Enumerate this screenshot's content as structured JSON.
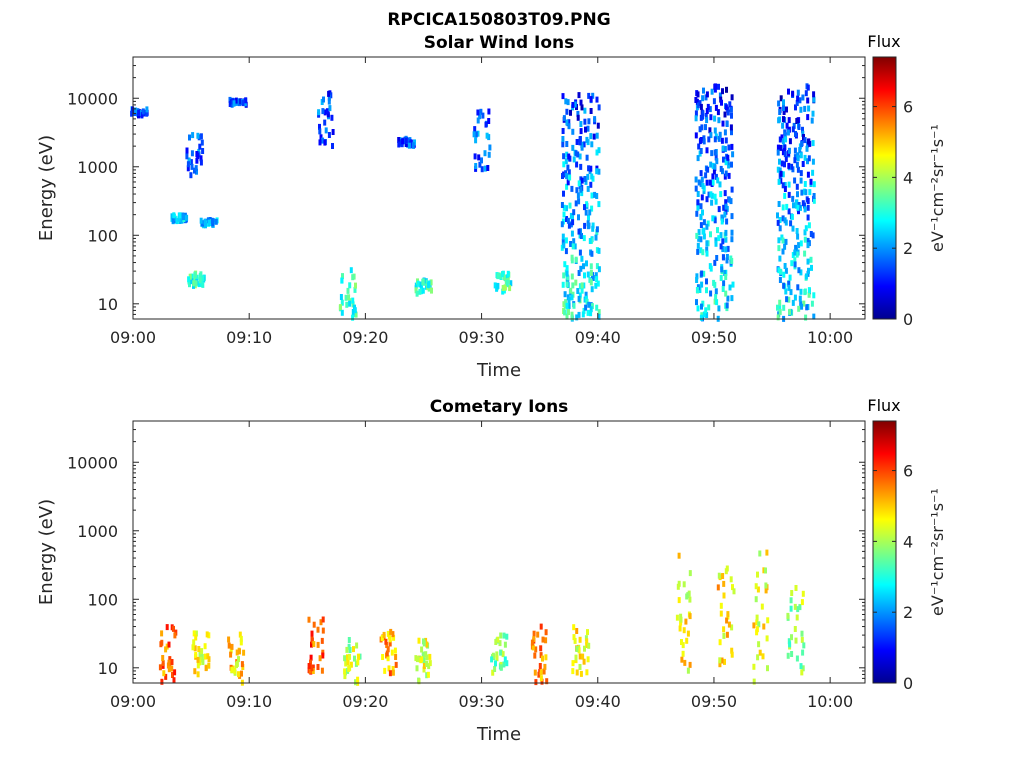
{
  "figure": {
    "title": "RPCICA150803T09.PNG"
  },
  "chart_data": [
    {
      "type": "heatmap",
      "title": "Solar Wind Ions",
      "xlabel": "Time",
      "ylabel": "Energy (eV)",
      "x_ticks": [
        "09:00",
        "09:10",
        "09:20",
        "09:30",
        "09:40",
        "09:50",
        "10:00"
      ],
      "xlim": [
        "09:00",
        "10:03"
      ],
      "y_scale": "log",
      "y_ticks": [
        "10",
        "100",
        "1000",
        "10000"
      ],
      "ylim": [
        6,
        40000
      ],
      "colorbar": {
        "label": "Flux",
        "unit": "eV⁻¹cm⁻²sr⁻¹s⁻¹",
        "range": [
          0,
          7.4
        ],
        "ticks": [
          "0",
          "2",
          "4",
          "6"
        ],
        "colormap": "jet"
      },
      "clusters": [
        {
          "t": "09:00.5",
          "e_lo": 5500,
          "e_hi": 7000,
          "flux": 1.5
        },
        {
          "t": "09:04",
          "e_lo": 160,
          "e_hi": 200,
          "flux": 2.4
        },
        {
          "t": "09:05.4",
          "e_lo": 18,
          "e_hi": 28,
          "flux": 3.2
        },
        {
          "t": "09:05.3",
          "e_lo": 700,
          "e_hi": 3000,
          "flux": 1.6
        },
        {
          "t": "09:06.5",
          "e_lo": 140,
          "e_hi": 170,
          "flux": 2.4
        },
        {
          "t": "09:09",
          "e_lo": 8000,
          "e_hi": 9500,
          "flux": 1.5
        },
        {
          "t": "09:16.5",
          "e_lo": 2000,
          "e_hi": 12000,
          "flux": 1.5
        },
        {
          "t": "09:18.5",
          "e_lo": 6,
          "e_hi": 35,
          "flux": 3.1
        },
        {
          "t": "09:23.5",
          "e_lo": 2000,
          "e_hi": 2600,
          "flux": 1.5
        },
        {
          "t": "09:25",
          "e_lo": 14,
          "e_hi": 22,
          "flux": 3.1
        },
        {
          "t": "09:30",
          "e_lo": 900,
          "e_hi": 7000,
          "flux": 1.6
        },
        {
          "t": "09:31.8",
          "e_lo": 15,
          "e_hi": 28,
          "flux": 3.2
        },
        {
          "t": "09:38.5",
          "e_lo": 6,
          "e_hi": 12000,
          "flux": 2.3
        },
        {
          "t": "09:50",
          "e_lo": 6,
          "e_hi": 15000,
          "flux": 2.2
        },
        {
          "t": "09:57",
          "e_lo": 6,
          "e_hi": 15000,
          "flux": 2.2
        }
      ]
    },
    {
      "type": "heatmap",
      "title": "Cometary Ions",
      "xlabel": "Time",
      "ylabel": "Energy (eV)",
      "x_ticks": [
        "09:00",
        "09:10",
        "09:20",
        "09:30",
        "09:40",
        "09:50",
        "10:00"
      ],
      "xlim": [
        "09:00",
        "10:03"
      ],
      "y_scale": "log",
      "y_ticks": [
        "10",
        "100",
        "1000",
        "10000"
      ],
      "ylim": [
        6,
        40000
      ],
      "colorbar": {
        "label": "Flux",
        "unit": "eV⁻¹cm⁻²sr⁻¹s⁻¹",
        "range": [
          0,
          7.4
        ],
        "ticks": [
          "0",
          "2",
          "4",
          "6"
        ],
        "colormap": "jet"
      },
      "clusters": [
        {
          "t": "09:03",
          "e_lo": 6,
          "e_hi": 45,
          "flux": 5.6
        },
        {
          "t": "09:05.8",
          "e_lo": 8,
          "e_hi": 32,
          "flux": 4.5
        },
        {
          "t": "09:08.8",
          "e_lo": 6,
          "e_hi": 32,
          "flux": 4.9
        },
        {
          "t": "09:15.8",
          "e_lo": 8,
          "e_hi": 55,
          "flux": 5.9
        },
        {
          "t": "09:18.8",
          "e_lo": 6,
          "e_hi": 26,
          "flux": 4.1
        },
        {
          "t": "09:22",
          "e_lo": 8,
          "e_hi": 35,
          "flux": 5.3
        },
        {
          "t": "09:25",
          "e_lo": 6,
          "e_hi": 25,
          "flux": 4.4
        },
        {
          "t": "09:31.5",
          "e_lo": 8,
          "e_hi": 30,
          "flux": 3.6
        },
        {
          "t": "09:35",
          "e_lo": 6,
          "e_hi": 40,
          "flux": 5.6
        },
        {
          "t": "09:38.5",
          "e_lo": 8,
          "e_hi": 45,
          "flux": 4.6
        },
        {
          "t": "09:47.5",
          "e_lo": 8,
          "e_hi": 500,
          "flux": 4.6
        },
        {
          "t": "09:51",
          "e_lo": 8,
          "e_hi": 300,
          "flux": 4.8
        },
        {
          "t": "09:54",
          "e_lo": 6,
          "e_hi": 600,
          "flux": 4.5
        },
        {
          "t": "09:57",
          "e_lo": 8,
          "e_hi": 150,
          "flux": 3.8
        }
      ]
    }
  ]
}
